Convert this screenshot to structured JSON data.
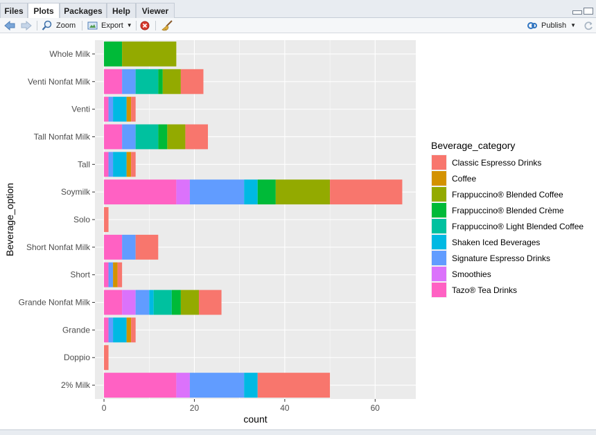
{
  "tabs": [
    {
      "label": "Files",
      "active": false
    },
    {
      "label": "Plots",
      "active": true
    },
    {
      "label": "Packages",
      "active": false
    },
    {
      "label": "Help",
      "active": false
    },
    {
      "label": "Viewer",
      "active": false
    }
  ],
  "toolbar": {
    "zoom_label": "Zoom",
    "export_label": "Export",
    "publish_label": "Publish"
  },
  "chart_data": {
    "type": "bar",
    "orientation": "horizontal",
    "stacked": true,
    "xlabel": "count",
    "ylabel": "Beverage_option",
    "xlim": [
      -2,
      69
    ],
    "xticks": [
      0,
      20,
      40,
      60
    ],
    "legend_title": "Beverage_category",
    "legend_position": "right",
    "categories": [
      "Whole Milk",
      "Venti Nonfat Milk",
      "Venti",
      "Tall Nonfat Milk",
      "Tall",
      "Soymilk",
      "Solo",
      "Short Nonfat Milk",
      "Short",
      "Grande Nonfat Milk",
      "Grande",
      "Doppio",
      "2% Milk"
    ],
    "series": [
      {
        "name": "Classic Espresso Drinks",
        "color": "#F8766D",
        "values": [
          0,
          5,
          1,
          5,
          1,
          16,
          1,
          5,
          1,
          5,
          1,
          1,
          16
        ]
      },
      {
        "name": "Coffee",
        "color": "#D39200",
        "values": [
          0,
          0,
          1,
          0,
          1,
          0,
          0,
          0,
          1,
          0,
          1,
          0,
          0
        ]
      },
      {
        "name": "Frappuccino® Blended Coffee",
        "color": "#93AA00",
        "values": [
          12,
          4,
          0,
          4,
          0,
          12,
          0,
          0,
          0,
          4,
          0,
          0,
          0
        ]
      },
      {
        "name": "Frappuccino® Blended Crème",
        "color": "#00BA38",
        "values": [
          4,
          1,
          0,
          2,
          0,
          4,
          0,
          0,
          0,
          2,
          0,
          0,
          0
        ]
      },
      {
        "name": "Frappuccino® Light Blended Coffee",
        "color": "#00C19F",
        "values": [
          0,
          5,
          0,
          5,
          0,
          0,
          0,
          0,
          0,
          4,
          0,
          0,
          0
        ]
      },
      {
        "name": "Shaken Iced Beverages",
        "color": "#00B9E3",
        "values": [
          0,
          0,
          3,
          0,
          3,
          3,
          0,
          0,
          0,
          1,
          3,
          0,
          3
        ]
      },
      {
        "name": "Signature Espresso Drinks",
        "color": "#619CFF",
        "values": [
          0,
          3,
          1,
          3,
          1,
          12,
          0,
          3,
          1,
          3,
          1,
          0,
          12
        ]
      },
      {
        "name": "Smoothies",
        "color": "#DB72FB",
        "values": [
          0,
          0,
          0,
          0,
          0,
          3,
          0,
          0,
          0,
          3,
          0,
          0,
          3
        ]
      },
      {
        "name": "Tazo® Tea Drinks",
        "color": "#FF61C3",
        "values": [
          0,
          4,
          1,
          4,
          1,
          16,
          0,
          4,
          1,
          4,
          1,
          0,
          16
        ]
      }
    ]
  }
}
